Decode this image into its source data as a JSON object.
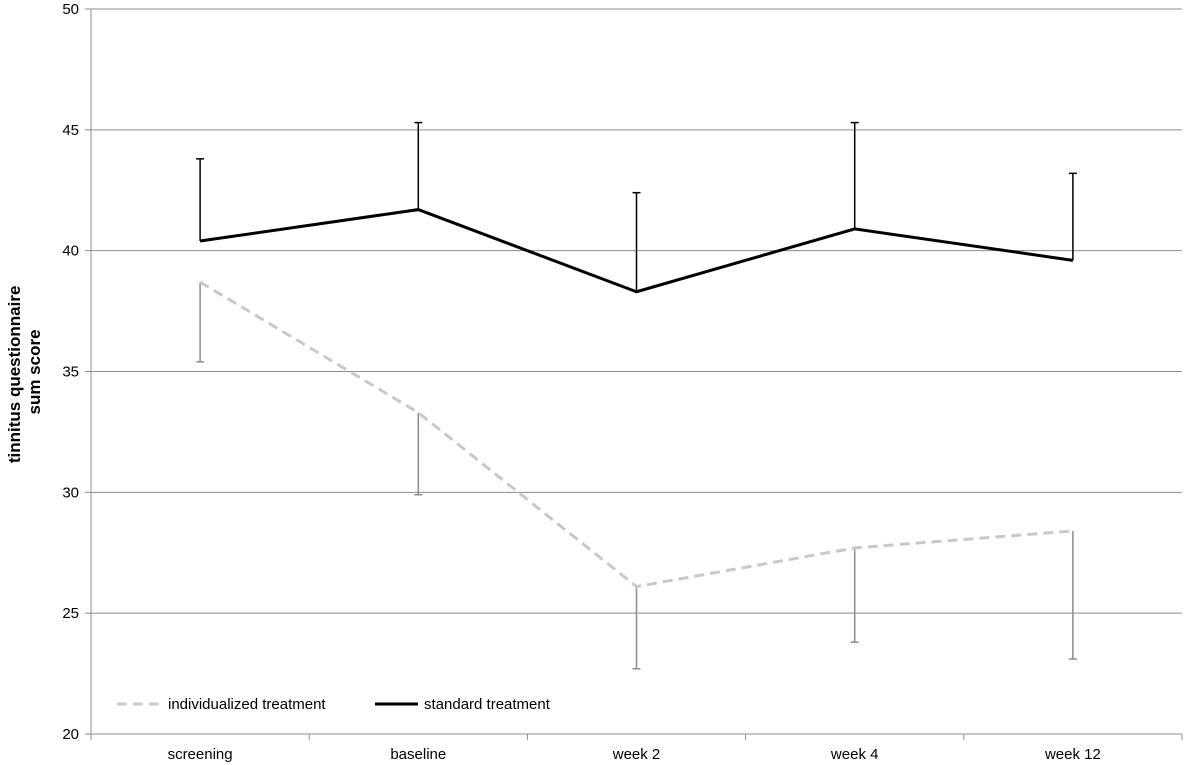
{
  "chart_data": {
    "type": "line",
    "categories": [
      "screening",
      "baseline",
      "week 2",
      "week 4",
      "week 12"
    ],
    "ylabel": [
      "tinnitus questionnaire",
      "sum score"
    ],
    "ylim": [
      20,
      50
    ],
    "yticks": [
      20,
      25,
      30,
      35,
      40,
      45,
      50
    ],
    "grid": "horizontal",
    "legend_position": "bottom-left",
    "series": [
      {
        "name": "individualized treatment",
        "values": [
          38.7,
          33.3,
          26.1,
          27.7,
          28.4
        ],
        "error_low": [
          35.4,
          29.9,
          22.7,
          23.8,
          23.1
        ],
        "color": "#c8c8c8",
        "dash": "dashed",
        "error_color": "#8c8c8c"
      },
      {
        "name": "standard treatment",
        "values": [
          40.4,
          41.7,
          38.3,
          40.9,
          39.6
        ],
        "error_high": [
          43.8,
          45.3,
          42.4,
          45.3,
          43.2
        ],
        "color": "#000000",
        "dash": "solid",
        "error_color": "#000000"
      }
    ]
  }
}
